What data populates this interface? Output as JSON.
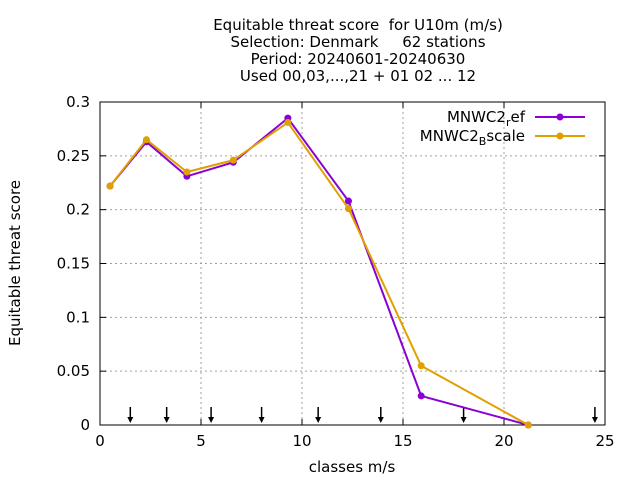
{
  "chart_data": {
    "type": "line",
    "title_lines": [
      "Equitable threat score  for U10m (m/s)",
      "Selection: Denmark     62 stations",
      "Period: 20240601-20240630",
      "Used 00,03,...,21 + 01 02 ... 12"
    ],
    "xlabel": "classes m/s",
    "ylabel": "Equitable threat score",
    "xlim": [
      0,
      25
    ],
    "ylim": [
      0,
      0.3
    ],
    "xticks": [
      0,
      5,
      10,
      15,
      20,
      25
    ],
    "yticks": [
      0,
      0.05,
      0.1,
      0.15,
      0.2,
      0.25,
      0.3
    ],
    "xtick_labels": [
      "0",
      "5",
      "10",
      "15",
      "20",
      "25"
    ],
    "ytick_labels": [
      "0",
      "0.05",
      "0.1",
      "0.15",
      "0.2",
      "0.25",
      "0.3"
    ],
    "grid": true,
    "legend_position": "top-right",
    "class_arrows_x": [
      1.5,
      3.3,
      5.5,
      8.0,
      10.8,
      13.9,
      18.0,
      24.5
    ],
    "series": [
      {
        "name_main": "MNWC2",
        "name_sub": "r",
        "name_tail": "ef",
        "color": "#8b00d4",
        "x": [
          0.5,
          2.3,
          4.3,
          6.6,
          9.3,
          12.3,
          15.9,
          21.2
        ],
        "y": [
          0.222,
          0.263,
          0.231,
          0.244,
          0.285,
          0.208,
          0.027,
          0.0
        ]
      },
      {
        "name_main": "MNWC2",
        "name_sub": "B",
        "name_tail": "scale",
        "color": "#e0a000",
        "x": [
          0.5,
          2.3,
          4.3,
          6.6,
          9.3,
          12.3,
          15.9,
          21.2
        ],
        "y": [
          0.222,
          0.265,
          0.235,
          0.246,
          0.281,
          0.201,
          0.055,
          0.0
        ]
      }
    ]
  }
}
